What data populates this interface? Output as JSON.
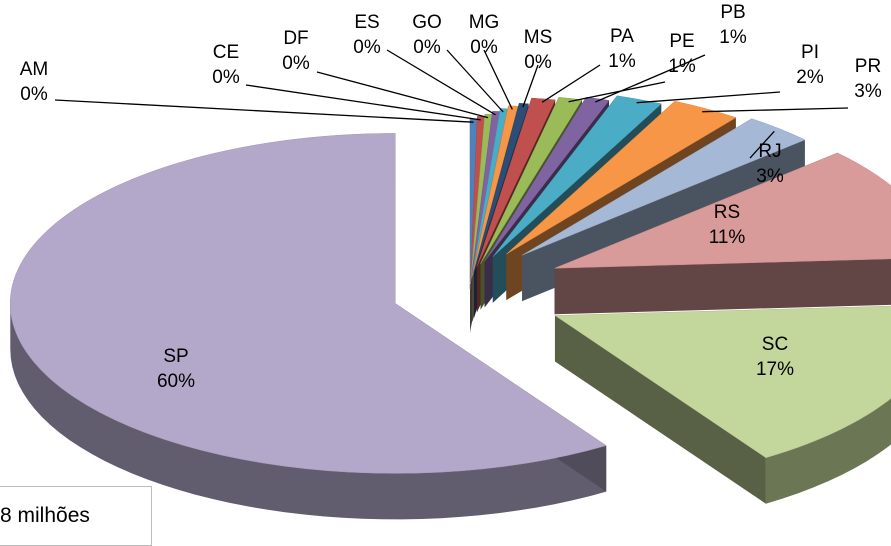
{
  "chart_data": {
    "type": "pie",
    "three_d": true,
    "exploded": true,
    "labels_show": [
      "category",
      "percent"
    ],
    "slices": [
      {
        "label": "AM",
        "percent_label": "0%",
        "value": 0.3,
        "color": "#4f81bd"
      },
      {
        "label": "CE",
        "percent_label": "0%",
        "value": 0.3,
        "color": "#c0504d"
      },
      {
        "label": "DF",
        "percent_label": "0%",
        "value": 0.3,
        "color": "#9bbb59"
      },
      {
        "label": "ES",
        "percent_label": "0%",
        "value": 0.3,
        "color": "#8064a2"
      },
      {
        "label": "GO",
        "percent_label": "0%",
        "value": 0.3,
        "color": "#4bacc6"
      },
      {
        "label": "MG",
        "percent_label": "0%",
        "value": 0.4,
        "color": "#f79646"
      },
      {
        "label": "MS",
        "percent_label": "0%",
        "value": 0.4,
        "color": "#2c4d75"
      },
      {
        "label": "PA",
        "percent_label": "1%",
        "value": 1,
        "color": "#c0504d"
      },
      {
        "label": "PE",
        "percent_label": "1%",
        "value": 1,
        "color": "#9bbb59"
      },
      {
        "label": "PB",
        "percent_label": "1%",
        "value": 1,
        "color": "#8064a2"
      },
      {
        "label": "PI",
        "percent_label": "2%",
        "value": 2,
        "color": "#4bacc6"
      },
      {
        "label": "PR",
        "percent_label": "3%",
        "value": 3,
        "color": "#f79646"
      },
      {
        "label": "RJ",
        "percent_label": "3%",
        "value": 3,
        "color": "#a5b9d6"
      },
      {
        "label": "RS",
        "percent_label": "11%",
        "value": 11,
        "color": "#d99b9a"
      },
      {
        "label": "SC",
        "percent_label": "17%",
        "value": 17,
        "color": "#c3d69b"
      },
      {
        "label": "SP",
        "percent_label": "60%",
        "value": 60,
        "color": "#b3a8c9"
      }
    ]
  },
  "note": {
    "text": "8 milhões"
  }
}
